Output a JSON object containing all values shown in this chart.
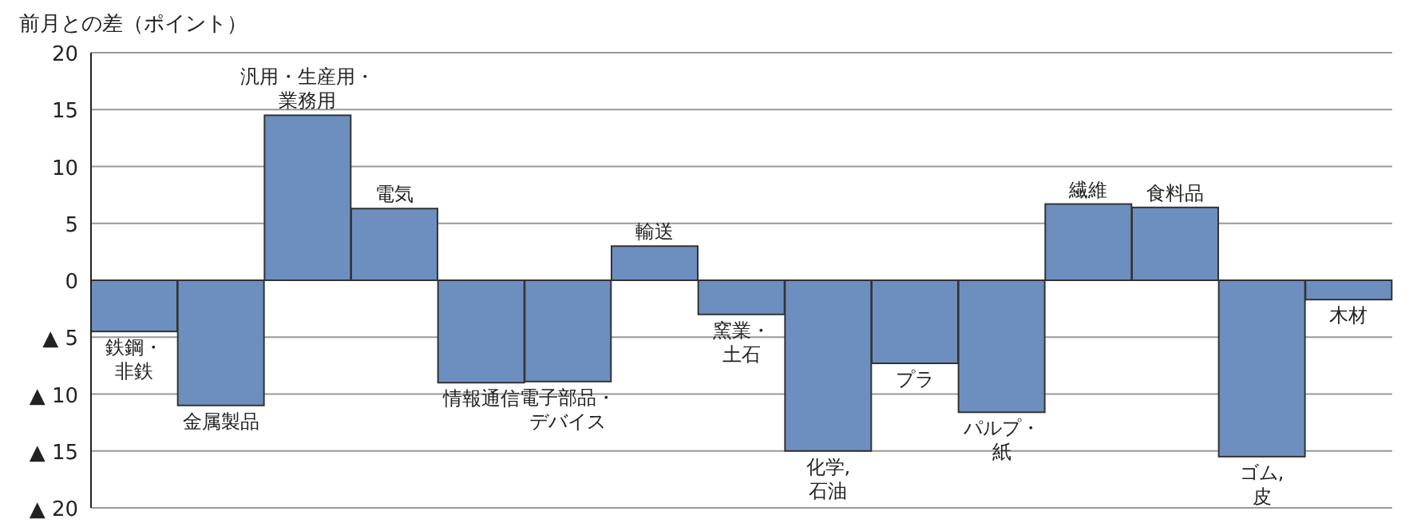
{
  "chart_data": {
    "type": "bar",
    "ylabel": "前月との差（ポイント）",
    "categories": [
      "鉄鋼・非鉄",
      "金属製品",
      "汎用・生産用・業務用",
      "電気",
      "情報通信",
      "電子部品・デバイス",
      "輸送",
      "窯業・土石",
      "化学, 石油",
      "プラ",
      "パルプ・紙",
      "繊維",
      "食料品",
      "ゴム, 皮",
      "木材"
    ],
    "values": [
      -4.5,
      -11.0,
      14.5,
      6.3,
      -9.0,
      -8.9,
      3.0,
      -3.0,
      -15.0,
      -7.3,
      -11.6,
      6.7,
      6.4,
      -15.5,
      -1.7
    ],
    "color": "#6d8fbf",
    "ylim": [
      -20,
      20
    ],
    "yticks": [
      20,
      15,
      10,
      5,
      0,
      {
        "value": -5,
        "label": "▲ 5"
      },
      {
        "value": -10,
        "label": "▲ 10"
      },
      {
        "value": -15,
        "label": "▲ 15"
      },
      {
        "value": -20,
        "label": "▲ 20"
      }
    ],
    "grid": "y",
    "tick_labels": "y"
  }
}
